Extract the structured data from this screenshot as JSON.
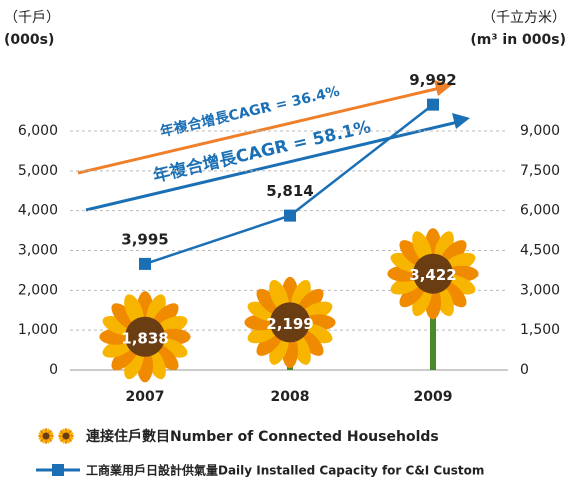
{
  "chart_data": {
    "type": "combo",
    "y_label": [
      "（千戶）",
      "(000s)"
    ],
    "y2_label": [
      "（千立方米）",
      "(m³ in 000s)"
    ],
    "categories": [
      "2007",
      "2008",
      "2009"
    ],
    "series": [
      {
        "name": "連接住戶數目Number of Connected Households",
        "type": "bar",
        "color": "#f5a800",
        "values": [
          1838,
          2199,
          3422
        ],
        "value_labels": [
          "1,838",
          "2,199",
          "3,422"
        ]
      },
      {
        "name": "工商業用戶日設計供氣量Daily Installed Capacity for C&I Custom",
        "type": "line",
        "axis": "y2",
        "color": "#1a6fb5",
        "values": [
          3995,
          5814,
          9992
        ],
        "value_labels": [
          "3,995",
          "5,814",
          "9,992"
        ]
      }
    ],
    "annotations": [
      "年複合增長CAGR = 36.4%",
      "年複合增長CAGR = 58.1%"
    ],
    "ylim": [
      0,
      6000
    ],
    "yticks": [
      0,
      {
        "value": 1000,
        "label": "1,000"
      },
      {
        "value": 2000,
        "label": "2,000"
      },
      {
        "value": 3000,
        "label": "3,000"
      },
      {
        "value": 4000,
        "label": "4,000"
      },
      {
        "value": 5000,
        "label": "5,000"
      },
      {
        "value": 6000,
        "label": "6,000"
      }
    ],
    "y2lim": [
      0,
      9000
    ],
    "y2ticks": [
      0,
      {
        "value": 1500,
        "label": "1,500"
      },
      {
        "value": 3000,
        "label": "3,000"
      },
      {
        "value": 4500,
        "label": "4,500"
      },
      {
        "value": 6000,
        "label": "6,000"
      },
      {
        "value": 7500,
        "label": "7,500"
      },
      {
        "value": 9000,
        "label": "9,000"
      }
    ],
    "grid": true
  }
}
